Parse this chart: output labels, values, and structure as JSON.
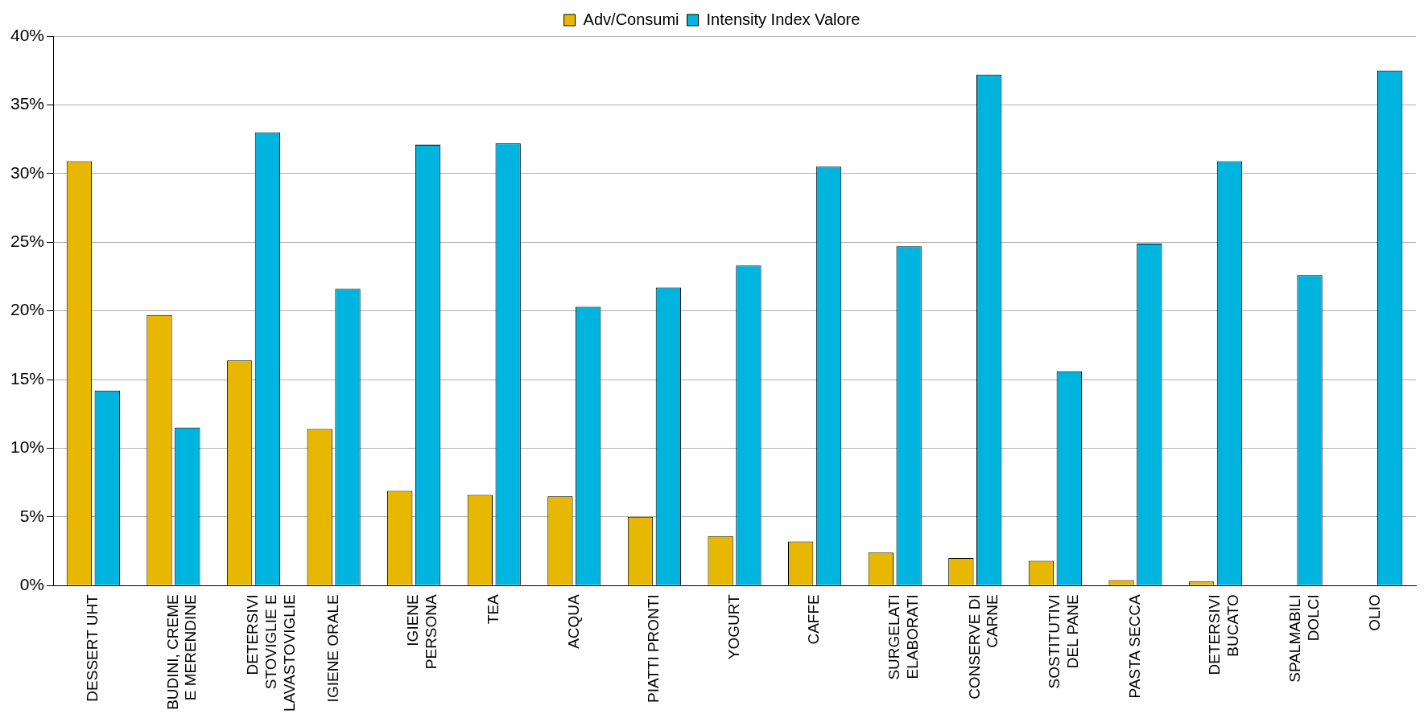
{
  "chart_data": {
    "type": "bar",
    "categories": [
      "DESSERT UHT",
      "BUDINI, CREME E MERENDINE",
      "DETERSIVI STOVIGLIE E LAVASTOVIGLIE",
      "IGIENE ORALE",
      "IGIENE PERSONA",
      "TEA",
      "ACQUA",
      "PIATTI PRONTI",
      "YOGURT",
      "CAFFE",
      "SURGELATI ELABORATI",
      "CONSERVE DI CARNE",
      "SOSTITUTIVI DEL PANE",
      "PASTA SECCA",
      "DETERSIVI BUCATO",
      "SPALMABILI DOLCI",
      "OLIO"
    ],
    "series": [
      {
        "name": "Adv/Consumi",
        "color": "#e8b800",
        "values": [
          30.9,
          19.7,
          16.4,
          11.4,
          6.9,
          6.6,
          6.5,
          5.0,
          3.6,
          3.2,
          2.4,
          2.0,
          1.8,
          0.4,
          0.3,
          0,
          0
        ]
      },
      {
        "name": "Intensity Index Valore",
        "color": "#00b4e0",
        "values": [
          14.2,
          11.5,
          33.0,
          21.6,
          32.1,
          32.2,
          20.3,
          21.7,
          23.3,
          30.5,
          24.7,
          37.2,
          15.6,
          24.9,
          30.9,
          22.6,
          37.5
        ]
      }
    ],
    "ylim": [
      0,
      40
    ],
    "yticks": [
      {
        "value": 0,
        "label": "0%"
      },
      {
        "value": 5,
        "label": "5%"
      },
      {
        "value": 10,
        "label": "10%"
      },
      {
        "value": 15,
        "label": "15%"
      },
      {
        "value": 20,
        "label": "20%"
      },
      {
        "value": 25,
        "label": "25%"
      },
      {
        "value": 30,
        "label": "30%"
      },
      {
        "value": 35,
        "label": "35%"
      },
      {
        "value": 40,
        "label": "40%"
      }
    ],
    "grid": "y",
    "legend": "top"
  }
}
